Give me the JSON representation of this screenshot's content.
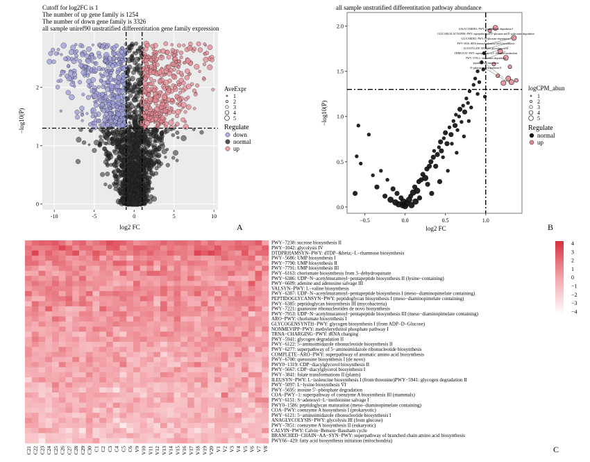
{
  "colors": {
    "down": "#9c9cd8",
    "normal": "#2a2a2a",
    "up": "#e58a93",
    "heat_high": "#d7303e",
    "heat_low": "#ffffff",
    "panel_bg": "#ebebeb"
  },
  "panel_labels": [
    "A",
    "B",
    "C"
  ],
  "chart_data": [
    {
      "type": "scatter",
      "panel": "A",
      "title_lines": [
        "Cutoff for log2FC is 1",
        "The number of up gene family is 1254",
        "The number of down gene family is 3326",
        "all sample uniref90 unstratified differentitation gene family expression"
      ],
      "xlabel": "log2 FC",
      "ylabel": "−log10(P)",
      "xlim": [
        -11.5,
        10.5
      ],
      "ylim": [
        -0.1,
        2.95
      ],
      "xticks": [
        -10,
        -5,
        0,
        5,
        10
      ],
      "yticks": [
        0,
        1,
        2
      ],
      "thresholds": {
        "x": [
          -1,
          1
        ],
        "y": 1.3
      },
      "grid": true,
      "size_legend_title": "AveExpr",
      "size_legend": [
        "1",
        "2",
        "3",
        "4",
        "5"
      ],
      "color_legend_title": "Regulate",
      "color_legend": [
        "down",
        "normal",
        "up"
      ]
    },
    {
      "type": "scatter",
      "panel": "B",
      "title": "all sample unstratified differentitation  pathway abundance",
      "xlabel": "log2 FC",
      "ylabel": "−log10(P)",
      "xlim": [
        -0.72,
        1.45
      ],
      "ylim": [
        -0.07,
        2.15
      ],
      "xticks": [
        -0.5,
        0.0,
        0.5,
        1.0
      ],
      "xtick_labels": [
        "−0.5",
        "0.0",
        "0.5",
        "1.0"
      ],
      "yticks": [
        0.0,
        0.5,
        1.0,
        1.5,
        2.0
      ],
      "ytick_labels": [
        "0.0",
        "0.5",
        "1.0",
        "1.5",
        "2.0"
      ],
      "thresholds": {
        "x": 1.0,
        "y": 1.3
      },
      "grid": false,
      "size_legend_title": "logCPM_abun",
      "size_legend": [
        "1",
        "2",
        "3",
        "4",
        "5"
      ],
      "color_legend_title": "Regulate",
      "color_legend": [
        "normal",
        "up"
      ],
      "labeled_points": [
        {
          "label": "GALACTARDEG−PWY: D−galactarate degradation I",
          "x": 1.12,
          "y": 1.98
        },
        {
          "label": "GLUCARGALACTSUPER−PWY: superpathway of D−glucarate and D−galactarate degradation",
          "x": 1.08,
          "y": 1.93
        },
        {
          "label": "GLUCARDEG−PWY: D−glucarate degradation I",
          "x": 1.02,
          "y": 1.87
        },
        {
          "label": "PWY−6936: tRNA threonylcarbamoyl (t6A) biosynthesis",
          "x": 1.35,
          "y": 1.87
        },
        {
          "label": "GLYOXYLATE−BYPASS: glyoxylate cycle",
          "x": 1.3,
          "y": 1.82
        },
        {
          "label": "THREOCAT−PWY: superpathway of L−threonine metabolism",
          "x": 1.28,
          "y": 1.77
        },
        {
          "label": "PWY−5705: L−methionine degradation",
          "x": 1.25,
          "y": 1.72
        },
        {
          "label": "peptidoglycan maturation",
          "x": 1.22,
          "y": 1.43
        },
        {
          "label": "D−galacturonate degradation II",
          "x": 1.3,
          "y": 1.37
        }
      ],
      "points": [
        {
          "x": -0.62,
          "y": 0.15,
          "r": 4
        },
        {
          "x": -0.55,
          "y": 0.48,
          "r": 3
        },
        {
          "x": -0.58,
          "y": 0.9,
          "r": 3
        },
        {
          "x": -0.6,
          "y": 0.56,
          "r": 3
        },
        {
          "x": -0.45,
          "y": 0.8,
          "r": 3
        },
        {
          "x": -0.4,
          "y": 0.35,
          "r": 3
        },
        {
          "x": -0.35,
          "y": 0.22,
          "r": 4
        },
        {
          "x": -0.3,
          "y": 0.4,
          "r": 3
        },
        {
          "x": -0.25,
          "y": 0.12,
          "r": 4
        },
        {
          "x": -0.22,
          "y": 0.3,
          "r": 3
        },
        {
          "x": -0.18,
          "y": 0.08,
          "r": 5
        },
        {
          "x": -0.15,
          "y": 0.2,
          "r": 4
        },
        {
          "x": -0.12,
          "y": 0.05,
          "r": 5
        },
        {
          "x": -0.1,
          "y": 0.15,
          "r": 4
        },
        {
          "x": -0.08,
          "y": 0.03,
          "r": 5
        },
        {
          "x": -0.05,
          "y": 0.1,
          "r": 4
        },
        {
          "x": -0.03,
          "y": 0.02,
          "r": 5
        },
        {
          "x": 0.0,
          "y": 0.01,
          "r": 5
        },
        {
          "x": 0.02,
          "y": 0.04,
          "r": 5
        },
        {
          "x": 0.05,
          "y": 0.08,
          "r": 5
        },
        {
          "x": 0.07,
          "y": 0.12,
          "r": 4
        },
        {
          "x": 0.1,
          "y": 0.16,
          "r": 5
        },
        {
          "x": 0.12,
          "y": 0.22,
          "r": 4
        },
        {
          "x": 0.15,
          "y": 0.18,
          "r": 5
        },
        {
          "x": 0.17,
          "y": 0.28,
          "r": 4
        },
        {
          "x": 0.2,
          "y": 0.3,
          "r": 4
        },
        {
          "x": 0.22,
          "y": 0.36,
          "r": 4
        },
        {
          "x": 0.25,
          "y": 0.32,
          "r": 5
        },
        {
          "x": 0.27,
          "y": 0.42,
          "r": 4
        },
        {
          "x": 0.3,
          "y": 0.45,
          "r": 4
        },
        {
          "x": 0.32,
          "y": 0.5,
          "r": 4
        },
        {
          "x": 0.35,
          "y": 0.55,
          "r": 4
        },
        {
          "x": 0.36,
          "y": 0.62,
          "r": 3
        },
        {
          "x": 0.4,
          "y": 0.58,
          "r": 4
        },
        {
          "x": 0.42,
          "y": 0.66,
          "r": 3
        },
        {
          "x": 0.44,
          "y": 0.72,
          "r": 4
        },
        {
          "x": 0.45,
          "y": 0.62,
          "r": 4
        },
        {
          "x": 0.48,
          "y": 0.76,
          "r": 3
        },
        {
          "x": 0.5,
          "y": 0.82,
          "r": 4
        },
        {
          "x": 0.52,
          "y": 0.7,
          "r": 4
        },
        {
          "x": 0.55,
          "y": 0.88,
          "r": 3
        },
        {
          "x": 0.57,
          "y": 0.8,
          "r": 4
        },
        {
          "x": 0.6,
          "y": 0.95,
          "r": 3
        },
        {
          "x": 0.62,
          "y": 0.9,
          "r": 4
        },
        {
          "x": 0.63,
          "y": 1.02,
          "r": 3
        },
        {
          "x": 0.65,
          "y": 0.85,
          "r": 3
        },
        {
          "x": 0.67,
          "y": 1.0,
          "r": 3
        },
        {
          "x": 0.68,
          "y": 1.08,
          "r": 4
        },
        {
          "x": 0.7,
          "y": 0.94,
          "r": 3
        },
        {
          "x": 0.72,
          "y": 1.12,
          "r": 3
        },
        {
          "x": 0.74,
          "y": 1.05,
          "r": 4
        },
        {
          "x": 0.76,
          "y": 1.2,
          "r": 3
        },
        {
          "x": 0.78,
          "y": 1.15,
          "r": 3
        },
        {
          "x": 0.8,
          "y": 1.28,
          "r": 3
        },
        {
          "x": 0.82,
          "y": 1.1,
          "r": 3
        },
        {
          "x": 0.85,
          "y": 1.35,
          "r": 3
        },
        {
          "x": 0.87,
          "y": 1.42,
          "r": 3
        },
        {
          "x": 0.9,
          "y": 1.5,
          "r": 3
        },
        {
          "x": 0.92,
          "y": 1.38,
          "r": 3
        },
        {
          "x": 0.95,
          "y": 1.6,
          "r": 3
        },
        {
          "x": 0.97,
          "y": 1.52,
          "r": 3
        },
        {
          "x": 0.98,
          "y": 1.7,
          "r": 3
        },
        {
          "x": 0.99,
          "y": 1.22,
          "r": 3
        },
        {
          "x": 0.9,
          "y": 1.25,
          "r": 3
        },
        {
          "x": 0.58,
          "y": 0.7,
          "r": 3
        },
        {
          "x": 0.47,
          "y": 0.55,
          "r": 3
        },
        {
          "x": 0.38,
          "y": 0.45,
          "r": 4
        },
        {
          "x": 0.28,
          "y": 0.25,
          "r": 4
        },
        {
          "x": 0.18,
          "y": 0.1,
          "r": 4
        },
        {
          "x": 0.08,
          "y": 0.02,
          "r": 5
        },
        {
          "x": -0.02,
          "y": 0.06,
          "r": 5
        },
        {
          "x": 0.13,
          "y": 0.06,
          "r": 5
        },
        {
          "x": 0.33,
          "y": 0.15,
          "r": 4
        },
        {
          "x": 0.43,
          "y": 0.28,
          "r": 4
        },
        {
          "x": 0.53,
          "y": 0.4,
          "r": 3
        },
        {
          "x": 0.64,
          "y": 0.6,
          "r": 3
        },
        {
          "x": 0.73,
          "y": 0.78,
          "r": 3
        },
        {
          "x": 0.79,
          "y": 0.95,
          "r": 3
        },
        {
          "x": 1.05,
          "y": 1.95,
          "r": 3,
          "up": true
        },
        {
          "x": 1.12,
          "y": 1.98,
          "r": 4,
          "up": true
        },
        {
          "x": 1.18,
          "y": 1.72,
          "r": 4,
          "up": true
        },
        {
          "x": 1.25,
          "y": 1.65,
          "r": 4,
          "up": true
        },
        {
          "x": 1.3,
          "y": 1.55,
          "r": 3,
          "up": true
        },
        {
          "x": 1.35,
          "y": 1.87,
          "r": 4,
          "up": true
        },
        {
          "x": 1.28,
          "y": 1.42,
          "r": 4,
          "up": true
        },
        {
          "x": 1.22,
          "y": 1.37,
          "r": 4,
          "up": true
        },
        {
          "x": 1.15,
          "y": 1.45,
          "r": 3,
          "up": true
        },
        {
          "x": 1.32,
          "y": 1.38,
          "r": 4,
          "up": true
        },
        {
          "x": 1.1,
          "y": 1.58,
          "r": 3,
          "up": true
        },
        {
          "x": 1.38,
          "y": 1.4,
          "r": 3,
          "up": true
        }
      ]
    },
    {
      "type": "heatmap",
      "panel": "C",
      "columns": [
        "C21",
        "C22",
        "C23",
        "C24",
        "C25",
        "C26",
        "C27",
        "C28",
        "C29",
        "C30",
        "C1",
        "C2",
        "C3",
        "C4",
        "C5",
        "C6",
        "V9",
        "V10",
        "V11",
        "V12",
        "V13",
        "V14",
        "V15",
        "V16",
        "V17",
        "V18",
        "V19",
        "V20",
        "V1",
        "V2",
        "V3",
        "V4",
        "V5",
        "V6",
        "V7",
        "V8"
      ],
      "rows": [
        "PWY−7238: sucrose biosynthesis II",
        "PWY−1042: glycolysis IV",
        "DTDPRHAMSYN−PWY: dTDP−&beta;−L−rhamnose biosynthesis",
        "PWY−5686: UMP biosynthesis I",
        "PWY−7790: UMP biosynthesis II",
        "PWY−7791: UMP biosynthesis III",
        "PWY−6163: chorismate biosynthesis from 3−dehydroquinate",
        "PWY−6386: UDP−N−acetylmuramoyl−pentapeptide biosynthesis II (lysine−containing)",
        "PWY−6609: adenine and adenosine salvage III",
        "VALSYN−PWY: L−valine biosynthesis",
        "PWY−6387: UDP−N−acetylmuramoyl−pentapeptide biosynthesis I (meso−diaminopimelate containing)",
        "PEPTIDOGLYCANSYN−PWY: peptidoglycan biosynthesis I (meso−diaminopimelate containing)",
        "PWY−6385: peptidoglycan biosynthesis III (mycobacteria)",
        "PWY−7221: guanosine ribonucleotides de novo biosynthesis",
        "PWY−7953: UDP−N−acetylmuramoyl−pentapeptide biosynthesis III (meso−diaminopimelate containing)",
        "ARO−PWY: chorismate biosynthesis I",
        "GLYCOGENSYNTH−PWY: glycogen biosynthesis I (from ADP−D−Glucose)",
        "NONMEVIPP−PWY: methylerythritol phosphate pathway I",
        "TRNA−CHARGING−PWY: tRNA charging",
        "PWY−5941: glycogen degradation II",
        "PWY−6122: 5−aminoimidazole ribonucleotide biosynthesis II",
        "PWY−6277: superpathway of 5−aminoimidazole ribonucleotide biosynthesis",
        "COMPLETE−ARO−PWY: superpathway of aromatic amino acid biosynthesis",
        "PWY−6700: queuosine biosynthesis I (de novo)",
        "PWY0−1319: CDP−diacylglycerol biosynthesis II",
        "PWY−5667: CDP−diacylglycerol biosynthesis I",
        "PWY−3841: folate transformations II (plants)",
        "ILEUSYN−PWY: L−isoleucine biosynthesis I (from threonine)PWY−5941: glycogen degradation II",
        "PWY−5097: L−lysine biosynthesis VI",
        "PWY−5695: inosine 5'−phosphate degradation",
        "COA−PWY−1: superpathway of coenzyme A biosynthesis III (mammals)",
        "PWY−6151: S−adenosyl−L−methionine salvage I",
        "PWY0−1586: peptidoglycan maturation (meso−diaminopimelate containing)",
        "COA−PWY: coenzyme A biosynthesis I (prokaryotic)",
        "PWY−6121: 5−aminoimidazole ribonucleotide biosynthesis I",
        "ANAGLYCOLYSIS−PWY: glycolysis III (from glucose)",
        "PWY−7851: coenzyme A biosynthesis II (eukaryotic)",
        "CALVIN−PWY: Calvin−Benson−Bassham cycle",
        "BRANCHED−CHAIN−AA−SYN−PWY: superpathway of branched chain amino acid biosynthesis",
        "PWY66−429: fatty acid biosynthesis initiation (mitochondria)"
      ],
      "colorbar_ticks": [
        "4",
        "3",
        "2",
        "1",
        "0",
        "−1",
        "−2",
        "−3",
        "−4"
      ],
      "value_range": [
        -4,
        4
      ]
    }
  ]
}
